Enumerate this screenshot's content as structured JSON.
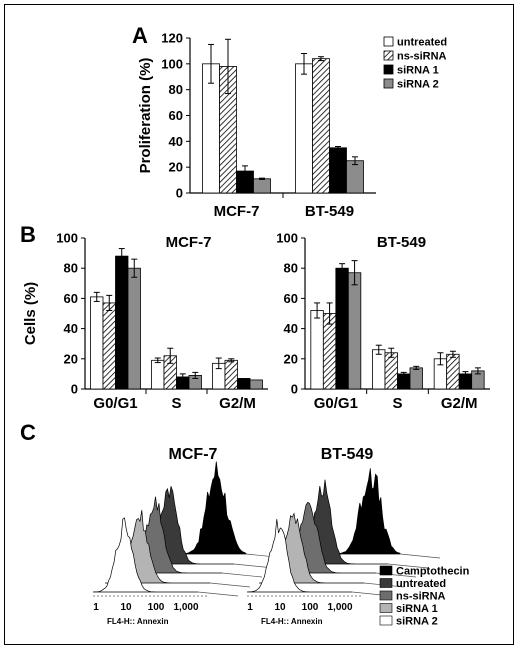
{
  "panels": {
    "a": "A",
    "b": "B",
    "c": "C"
  },
  "pattern_colors": {
    "untreated": "#ffffff",
    "ns-siRNA": "hatched",
    "siRNA 1": "#000000",
    "siRNA 2": "#8c8c8c"
  },
  "chart_data": [
    {
      "type": "bar",
      "panel": "A",
      "ylabel": "Proliferation (%)",
      "ylim": [
        0,
        120
      ],
      "yticks": [
        0,
        20,
        40,
        60,
        80,
        100,
        120
      ],
      "categories": [
        "MCF-7",
        "BT-549"
      ],
      "series": [
        {
          "name": "untreated",
          "values": [
            100,
            100
          ],
          "errors": [
            15,
            8
          ]
        },
        {
          "name": "ns-siRNA",
          "values": [
            98,
            104
          ],
          "errors": [
            21,
            1.5
          ]
        },
        {
          "name": "siRNA  1",
          "values": [
            17,
            35
          ],
          "errors": [
            4,
            1
          ]
        },
        {
          "name": "siRNA  2",
          "values": [
            11,
            25
          ],
          "errors": [
            0.5,
            3
          ]
        }
      ],
      "legend": "top-right"
    },
    {
      "type": "bar",
      "panel": "B",
      "title": "MCF-7",
      "ylabel": "Cells (%)",
      "ylim": [
        0,
        100
      ],
      "yticks": [
        0,
        20,
        40,
        60,
        80,
        100
      ],
      "categories": [
        "G0/G1",
        "S",
        "G2/M"
      ],
      "series": [
        {
          "values": [
            61,
            19,
            17
          ],
          "errors": [
            3,
            1.5,
            3.5
          ]
        },
        {
          "values": [
            57,
            22,
            19
          ],
          "errors": [
            5,
            5,
            1
          ]
        },
        {
          "values": [
            88,
            8,
            7
          ],
          "errors": [
            5,
            2,
            0
          ]
        },
        {
          "values": [
            80,
            9,
            6
          ],
          "errors": [
            6,
            2,
            0
          ]
        }
      ]
    },
    {
      "type": "bar",
      "panel": "B",
      "title": "BT-549",
      "ylim": [
        0,
        100
      ],
      "yticks": [
        0,
        20,
        40,
        60,
        80,
        100
      ],
      "categories": [
        "G0/G1",
        "S",
        "G2/M"
      ],
      "series": [
        {
          "values": [
            52,
            26,
            20
          ],
          "errors": [
            5,
            3,
            4
          ]
        },
        {
          "values": [
            50,
            24,
            23
          ],
          "errors": [
            7,
            3,
            2
          ]
        },
        {
          "values": [
            80,
            10,
            10
          ],
          "errors": [
            3,
            1,
            1.5
          ]
        },
        {
          "values": [
            77,
            14,
            12
          ],
          "errors": [
            8,
            1,
            2
          ]
        }
      ]
    }
  ],
  "flow": {
    "titles": [
      "MCF-7",
      "BT-549"
    ],
    "xticks": [
      "1",
      "10",
      "100",
      "1,000"
    ],
    "xlabel": "FL4-H:: Annexin",
    "legend": [
      {
        "label": "Camptothecin",
        "color": "#000000"
      },
      {
        "label": "untreated",
        "color": "#3a3a3a"
      },
      {
        "label": "ns-siRNA",
        "color": "#6e6e6e"
      },
      {
        "label": "siRNA  1",
        "color": "#b4b4b4"
      },
      {
        "label": "siRNA  2",
        "color": "#ffffff"
      }
    ]
  }
}
